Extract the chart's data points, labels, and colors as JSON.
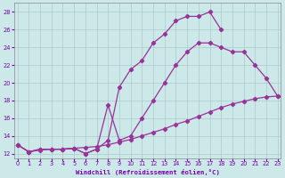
{
  "background_color": "#cce8e8",
  "grid_color": "#aacccc",
  "line_color": "#993399",
  "xlabel": "Windchill (Refroidissement éolien,°C)",
  "xlabel_color": "#7700aa",
  "tick_label_color": "#7700aa",
  "xlim": [
    -0.3,
    23.3
  ],
  "ylim": [
    11.5,
    29.0
  ],
  "yticks": [
    12,
    14,
    16,
    18,
    20,
    22,
    24,
    26,
    28
  ],
  "xticks": [
    0,
    1,
    2,
    3,
    4,
    5,
    6,
    7,
    8,
    9,
    10,
    11,
    12,
    13,
    14,
    15,
    16,
    17,
    18,
    19,
    20,
    21,
    22,
    23
  ],
  "line_bottom_x": [
    0,
    1,
    2,
    3,
    4,
    5,
    6,
    7,
    8,
    9,
    10,
    11,
    12,
    13,
    14,
    15,
    16,
    17,
    18,
    19,
    20,
    21,
    22,
    23
  ],
  "line_bottom_y": [
    13.0,
    12.2,
    12.4,
    12.5,
    12.5,
    12.6,
    12.7,
    12.8,
    13.0,
    13.3,
    13.6,
    14.0,
    14.4,
    14.8,
    15.3,
    15.7,
    16.2,
    16.7,
    17.2,
    17.6,
    17.9,
    18.2,
    18.4,
    18.5
  ],
  "line_mid_x": [
    0,
    1,
    2,
    3,
    4,
    5,
    6,
    7,
    8,
    9,
    10,
    11,
    12,
    13,
    14,
    15,
    16,
    17,
    18,
    19,
    20,
    21,
    22,
    23
  ],
  "line_mid_y": [
    13.0,
    12.2,
    12.5,
    12.5,
    12.5,
    12.6,
    12.0,
    12.5,
    17.5,
    13.5,
    14.0,
    16.0,
    18.0,
    20.0,
    22.0,
    23.5,
    24.5,
    24.5,
    24.0,
    23.5,
    23.5,
    22.0,
    20.5,
    18.5
  ],
  "line_top_x": [
    0,
    1,
    2,
    3,
    4,
    5,
    6,
    7,
    8,
    9,
    10,
    11,
    12,
    13,
    14,
    15,
    16,
    17,
    18
  ],
  "line_top_y": [
    13.0,
    12.2,
    12.5,
    12.5,
    12.5,
    12.6,
    12.0,
    12.5,
    13.5,
    19.5,
    21.5,
    22.5,
    24.5,
    25.5,
    27.0,
    27.5,
    27.5,
    28.0,
    26.0
  ]
}
